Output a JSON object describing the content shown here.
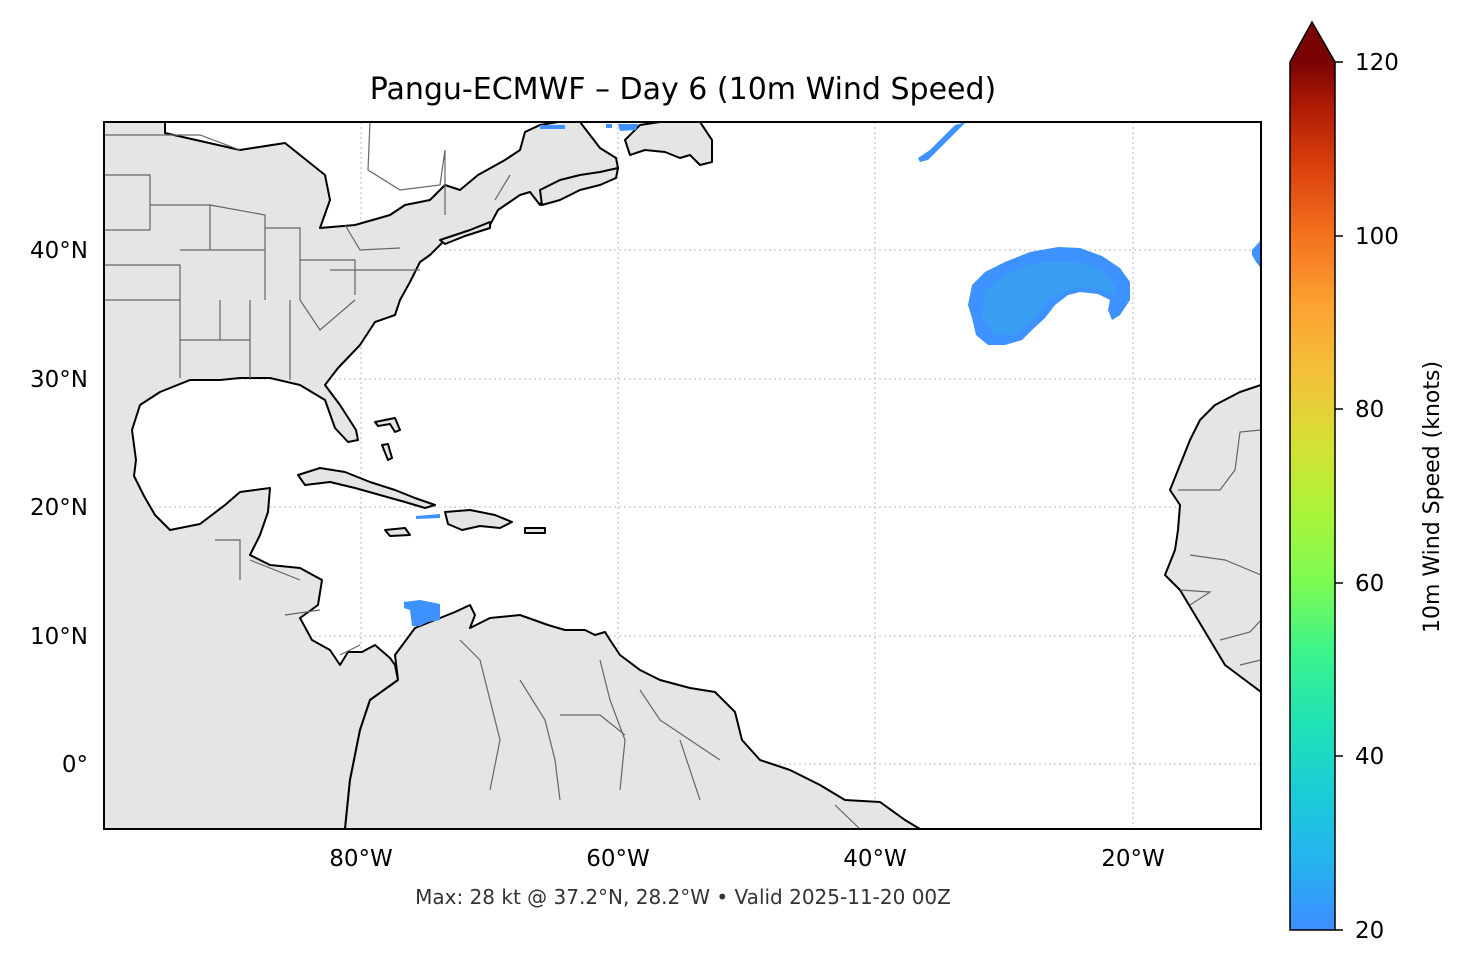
{
  "map": {
    "title": "Pangu-ECMWF – Day 6 (10m Wind Speed)",
    "lat_ticks": [
      "40°N",
      "30°N",
      "20°N",
      "10°N",
      "0°"
    ],
    "lon_ticks": [
      "80°W",
      "60°W",
      "40°W",
      "20°W"
    ],
    "extent": {
      "lon": [
        -100,
        -10
      ],
      "lat": [
        -5,
        50
      ]
    },
    "gridlines": true,
    "land_color": "#e5e5e5",
    "wind_color": "#3d92ff",
    "footer": "Max: 28 kt @ 37.2°N, 28.2°W • Valid 2025-11-20 00Z"
  },
  "colorbar": {
    "label": "10m Wind Speed (knots)",
    "ticks": [
      "20",
      "40",
      "60",
      "80",
      "100",
      "120"
    ],
    "range": [
      20,
      120
    ],
    "extend": "max",
    "colormap": "turbo"
  }
}
